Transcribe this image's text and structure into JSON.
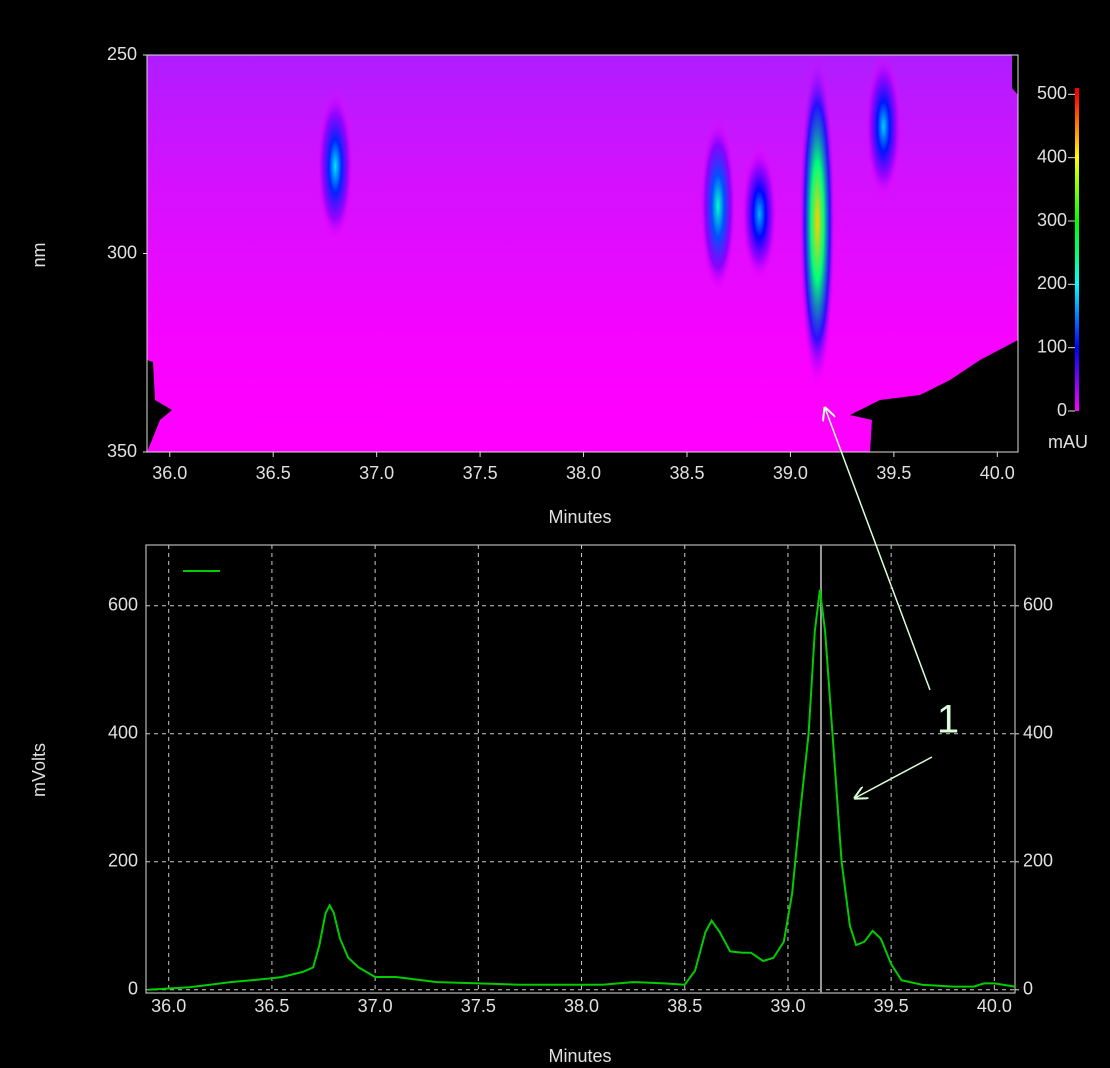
{
  "chart_data": [
    {
      "type": "heatmap",
      "xlabel": "Minutes",
      "ylabel": "nm",
      "xlim": [
        35.89,
        40.1
      ],
      "xticks": [
        {
          "value": 36,
          "label": "36.0"
        },
        36.5,
        {
          "value": 37,
          "label": "37.0"
        },
        37.5,
        {
          "value": 38,
          "label": "38.0"
        },
        38.5,
        {
          "value": 39,
          "label": "39.0"
        },
        39.5,
        {
          "value": 40,
          "label": "40.0"
        }
      ],
      "ylim": [
        250,
        350
      ],
      "yticks": [
        250,
        300,
        350
      ],
      "x": [
        36.8,
        38.65,
        38.85,
        39.13,
        39.45
      ],
      "y": [
        278,
        288,
        290,
        292,
        268
      ],
      "z": [
        190,
        220,
        170,
        420,
        180
      ],
      "colorbar": {
        "label": "mAU",
        "lim": [
          0,
          510
        ],
        "ticks": [
          0,
          100,
          200,
          300,
          400,
          500
        ],
        "colors": [
          "#ff00ff",
          "#0000ff",
          "#00ffff",
          "#00ff00",
          "#ffff00",
          "#ff0000"
        ]
      },
      "annotation": "1"
    },
    {
      "type": "line",
      "xlabel": "Minutes",
      "ylabel": "mVolts",
      "xlim": [
        35.89,
        40.1
      ],
      "xticks": [
        {
          "value": 36,
          "label": "36.0"
        },
        36.5,
        {
          "value": 37,
          "label": "37.0"
        },
        37.5,
        {
          "value": 38,
          "label": "38.0"
        },
        38.5,
        {
          "value": 39,
          "label": "39.0"
        },
        39.5,
        {
          "value": 40,
          "label": "40.0"
        }
      ],
      "ylim": [
        -5,
        695
      ],
      "yticks": [
        0,
        200,
        400,
        600
      ],
      "y2lim": [
        -5,
        695
      ],
      "y2ticks": [
        0,
        200,
        400,
        600
      ],
      "grid": true,
      "cursor_x": 39.16,
      "x": [
        35.9,
        36.0,
        36.1,
        36.2,
        36.3,
        36.4,
        36.5,
        36.55,
        36.6,
        36.65,
        36.7,
        36.73,
        36.76,
        36.78,
        36.8,
        36.83,
        36.87,
        36.92,
        37.0,
        37.1,
        37.15,
        37.3,
        37.5,
        37.7,
        37.9,
        38.1,
        38.25,
        38.4,
        38.5,
        38.55,
        38.6,
        38.63,
        38.67,
        38.72,
        38.78,
        38.82,
        38.88,
        38.93,
        38.98,
        39.02,
        39.06,
        39.1,
        39.13,
        39.155,
        39.18,
        39.22,
        39.26,
        39.3,
        39.33,
        39.37,
        39.41,
        39.45,
        39.5,
        39.55,
        39.65,
        39.8,
        39.9,
        39.95,
        40.0,
        40.1
      ],
      "series": [
        {
          "color": "#00cc00",
          "values": [
            0,
            2,
            4,
            8,
            12,
            15,
            18,
            20,
            24,
            28,
            35,
            70,
            120,
            132,
            120,
            80,
            50,
            35,
            20,
            20,
            18,
            12,
            10,
            8,
            8,
            8,
            12,
            10,
            8,
            30,
            90,
            108,
            90,
            60,
            58,
            58,
            45,
            50,
            75,
            150,
            280,
            400,
            560,
            625,
            560,
            380,
            200,
            100,
            70,
            75,
            92,
            80,
            40,
            15,
            8,
            5,
            5,
            10,
            10,
            5
          ]
        }
      ]
    }
  ]
}
